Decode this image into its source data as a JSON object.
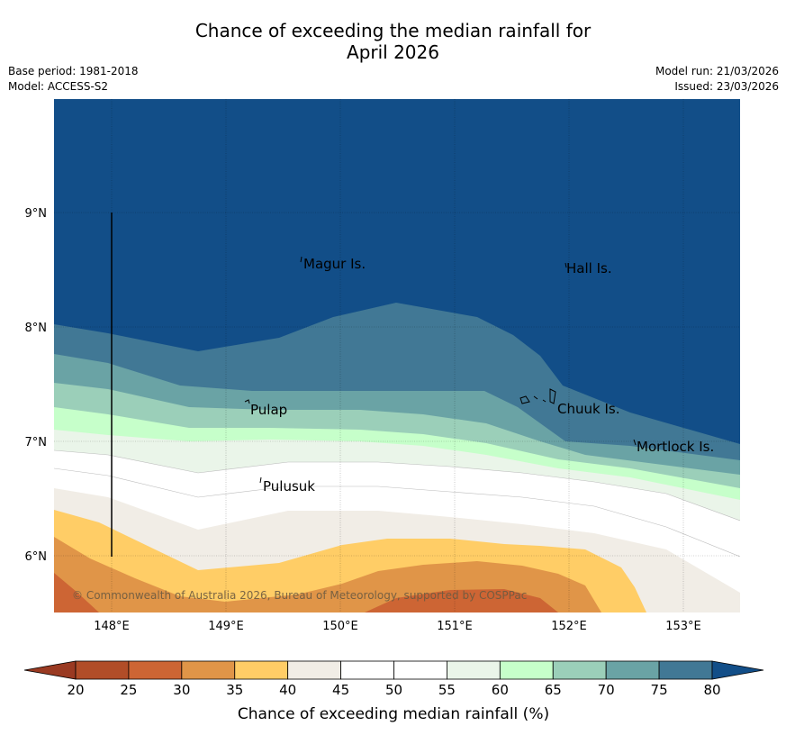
{
  "title": {
    "line1": "Chance of exceeding the median rainfall for",
    "line2": "April 2026"
  },
  "meta": {
    "base_period": "Base period: 1981-2018",
    "model": "Model: ACCESS-S2",
    "model_run": "Model run: 21/03/2026",
    "issued": "Issued: 23/03/2026"
  },
  "map": {
    "lat_labels": [
      "9°N",
      "8°N",
      "7°N",
      "6°N"
    ],
    "lon_labels": [
      "148°E",
      "149°E",
      "150°E",
      "151°E",
      "152°E",
      "153°E"
    ],
    "places": [
      "Magur Is.",
      "Hall Is.",
      "Pulap",
      "Chuuk Is.",
      "Mortlock Is.",
      "Pulusuk"
    ],
    "copyright": "© Commonwealth of Australia 2026, Bureau of Meteorology, supported by COSPPac"
  },
  "colorbar": {
    "title": "Chance of exceeding median rainfall (%)",
    "ticks": [
      "20",
      "25",
      "30",
      "35",
      "40",
      "45",
      "50",
      "55",
      "60",
      "65",
      "70",
      "75",
      "80"
    ],
    "colors": [
      "#b14d28",
      "#cd6534",
      "#e09548",
      "#ffcd66",
      "#f1ede6",
      "#ffffff",
      "#ffffff",
      "#eaf5e9",
      "#c6ffca",
      "#9bcfb9",
      "#6aa3a5",
      "#417895"
    ],
    "under_color": "#9a3a22",
    "over_color": "#124e88"
  }
}
